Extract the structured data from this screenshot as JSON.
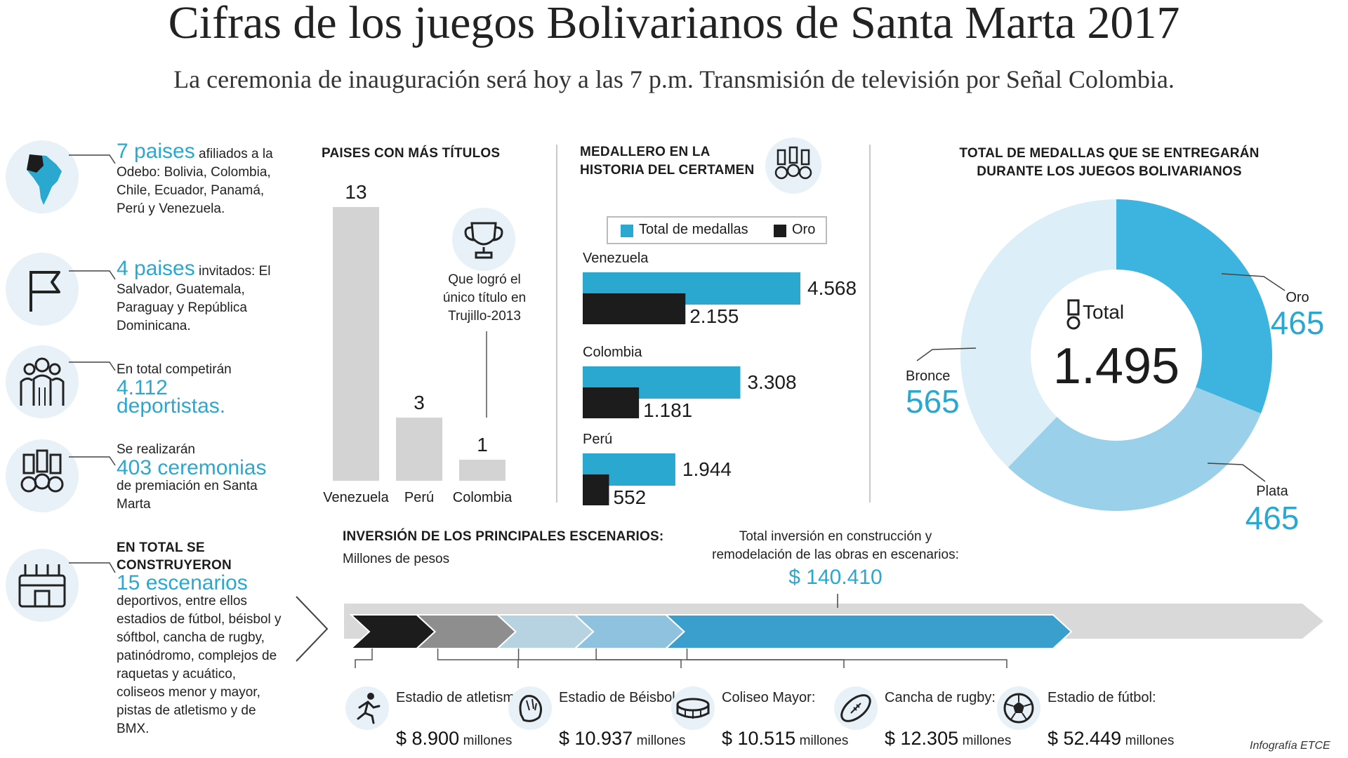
{
  "header": {
    "title": "Cifras de los juegos Bolivarianos de Santa Marta 2017",
    "subtitle": "La ceremonia de inauguración será hoy a las 7 p.m. Transmisión de televisión por Señal Colombia."
  },
  "facts": [
    {
      "icon": "south-america-map-icon",
      "highlight": "7 paises",
      "text": " afiliados a la Odebo: Bolivia, Colombia, Chile, Ecuador, Panamá, Perú y Venezuela."
    },
    {
      "icon": "flag-icon",
      "highlight": "4 paises",
      "text": " invitados: El Salvador, Guatemala, Paraguay y República Dominicana."
    },
    {
      "icon": "athletes-group-icon",
      "pre": "En total competirán",
      "highlight": "4.112 deportistas."
    },
    {
      "icon": "medals-icon",
      "pre": "Se realizarán",
      "highlight": "403 ceremonias",
      "text": "de premiación en Santa Marta"
    },
    {
      "icon": "stadium-icon",
      "pre": "EN TOTAL SE CONSTRUYERON",
      "highlight": "15 escenarios",
      "text": "deportivos, entre ellos estadios de fútbol, béisbol y sóftbol, cancha de rugby, patinódromo, complejos de raquetas y acuático, coliseos menor y mayor, pistas de atletismo y de BMX."
    }
  ],
  "titles_section": {
    "heading": "PAISES CON MÁS TÍTULOS",
    "note": "Que logró el único título en Trujillo-2013",
    "note_icon": "trophy-icon"
  },
  "medallero_section": {
    "heading_line1": "MEDALLERO EN LA",
    "heading_line2": "HISTORIA DEL CERTAMEN",
    "icon": "medals-icon",
    "legend": [
      {
        "label": "Total de medallas",
        "color": "#2ba8d0"
      },
      {
        "label": "Oro",
        "color": "#1c1c1c"
      }
    ]
  },
  "total_section": {
    "heading_line1": "TOTAL DE MEDALLAS QUE SE ENTREGARÁN",
    "heading_line2": "DURANTE LOS JUEGOS BOLIVARIANOS",
    "center_label": "Total",
    "center_value": "1.495",
    "center_icon": "medal-icon"
  },
  "investment": {
    "heading": "INVERSIÓN DE LOS PRINCIPALES ESCENARIOS:",
    "unit": "Millones de pesos",
    "total_label_line1": "Total inversión en construcción y",
    "total_label_line2": "remodelación de las obras en escenarios:",
    "total_value": "$ 140.410",
    "million_word": "millones"
  },
  "credit": "Infografía ETCE",
  "chart_data": [
    {
      "type": "bar",
      "title": "PAISES CON MÁS TÍTULOS",
      "categories": [
        "Venezuela",
        "Perú",
        "Colombia"
      ],
      "values": [
        13,
        3,
        1
      ],
      "value_labels": [
        "13",
        "3",
        "1"
      ],
      "bar_color": "#d3d3d3"
    },
    {
      "type": "bar",
      "orientation": "horizontal",
      "title": "MEDALLERO EN LA HISTORIA DEL CERTAMEN",
      "categories": [
        "Venezuela",
        "Colombia",
        "Perú"
      ],
      "series": [
        {
          "name": "Total de medallas",
          "values": [
            4568,
            3308,
            1944
          ],
          "labels": [
            "4.568",
            "3.308",
            "1.944"
          ],
          "color": "#2ba8d0"
        },
        {
          "name": "Oro",
          "values": [
            2155,
            1181,
            552
          ],
          "labels": [
            "2.155",
            "1.181",
            "552"
          ],
          "color": "#1c1c1c"
        }
      ],
      "legend": "top"
    },
    {
      "type": "pie",
      "title": "TOTAL DE MEDALLAS QUE SE ENTREGARÁN DURANTE LOS JUEGOS BOLIVARIANOS",
      "donut": true,
      "slices": [
        {
          "label": "Oro",
          "value": 465,
          "value_label": "465",
          "color": "#3db3e0"
        },
        {
          "label": "Plata",
          "value": 465,
          "value_label": "465",
          "color": "#9bd0ea"
        },
        {
          "label": "Bronce",
          "value": 565,
          "value_label": "565",
          "color": "#dceef7"
        }
      ]
    },
    {
      "type": "bar",
      "title": "INVERSIÓN DE LOS PRINCIPALES ESCENARIOS",
      "ylabel": "Millones de pesos",
      "categories": [
        "Estadio de atletismo:",
        "Estadio de Béisbol:",
        "Coliseo Mayor:",
        "Cancha de rugby:",
        "Estadio de fútbol:"
      ],
      "values": [
        8900,
        10937,
        10515,
        12305,
        52449
      ],
      "value_labels": [
        "$ 8.900",
        "$ 10.937",
        "$ 10.515",
        "$ 12.305",
        "$ 52.449"
      ],
      "icons": [
        "runner-icon",
        "baseball-glove-icon",
        "coliseum-icon",
        "rugby-ball-icon",
        "soccer-ball-icon"
      ],
      "colors": [
        "#1c1c1c",
        "#8e8e8e",
        "#b7d3e2",
        "#8fc2de",
        "#3a9fcc"
      ],
      "total": 140410
    }
  ]
}
